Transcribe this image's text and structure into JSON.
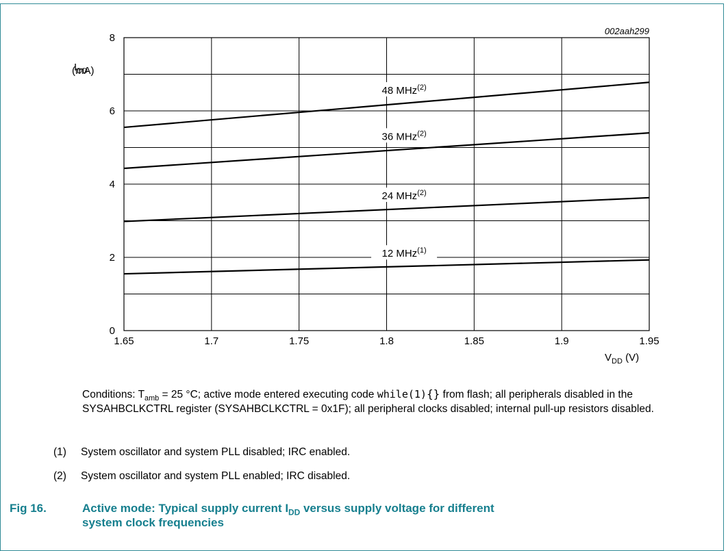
{
  "chart_data": {
    "type": "line",
    "figure_id": "002aah299",
    "ylabel_main": "I",
    "ylabel_sub": "DD",
    "ylabel_unit": "(mA)",
    "xlabel_main": "V",
    "xlabel_sub": "DD",
    "xlabel_unit": " (V)",
    "xlim": [
      1.65,
      1.95
    ],
    "ylim": [
      0,
      8
    ],
    "x_ticks": [
      "1.65",
      "1.7",
      "1.75",
      "1.8",
      "1.85",
      "1.9",
      "1.95"
    ],
    "y_ticks": [
      "0",
      "2",
      "4",
      "6",
      "8"
    ],
    "grid": true,
    "series": [
      {
        "name": "48 MHz",
        "note": "(2)",
        "x": [
          1.65,
          1.95
        ],
        "y": [
          5.55,
          6.78
        ]
      },
      {
        "name": "36 MHz",
        "note": "(2)",
        "x": [
          1.65,
          1.95
        ],
        "y": [
          4.43,
          5.4
        ]
      },
      {
        "name": "24 MHz",
        "note": "(2)",
        "x": [
          1.65,
          1.95
        ],
        "y": [
          2.98,
          3.63
        ]
      },
      {
        "name": "12 MHz",
        "note": "(1)",
        "x": [
          1.65,
          1.95
        ],
        "y": [
          1.55,
          1.93
        ]
      }
    ]
  },
  "notes": {
    "conditions_part1": "Conditions: T",
    "conditions_sub": "amb",
    "conditions_part2": " = 25 °C; active mode entered executing code ",
    "conditions_code": "while(1)",
    "conditions_braces": "{}",
    "conditions_part3": " from flash; all peripherals disabled in the SYSAHBCLKCTRL register (SYSAHBCLKCTRL = 0x1F); all peripheral clocks disabled; internal pull-up resistors disabled.",
    "footnotes": [
      {
        "num": "(1)",
        "text": "System oscillator and system PLL disabled; IRC enabled."
      },
      {
        "num": "(2)",
        "text": "System oscillator and system PLL enabled; IRC disabled."
      }
    ]
  },
  "caption": {
    "fig_num": "Fig 16.",
    "line1_part1": "Active mode: Typical supply current I",
    "line1_sub": "DD",
    "line1_part2": " versus supply voltage for different",
    "line2": "system clock frequencies"
  },
  "colors": {
    "frame": "#2f8a96",
    "caption": "#167f8e"
  }
}
